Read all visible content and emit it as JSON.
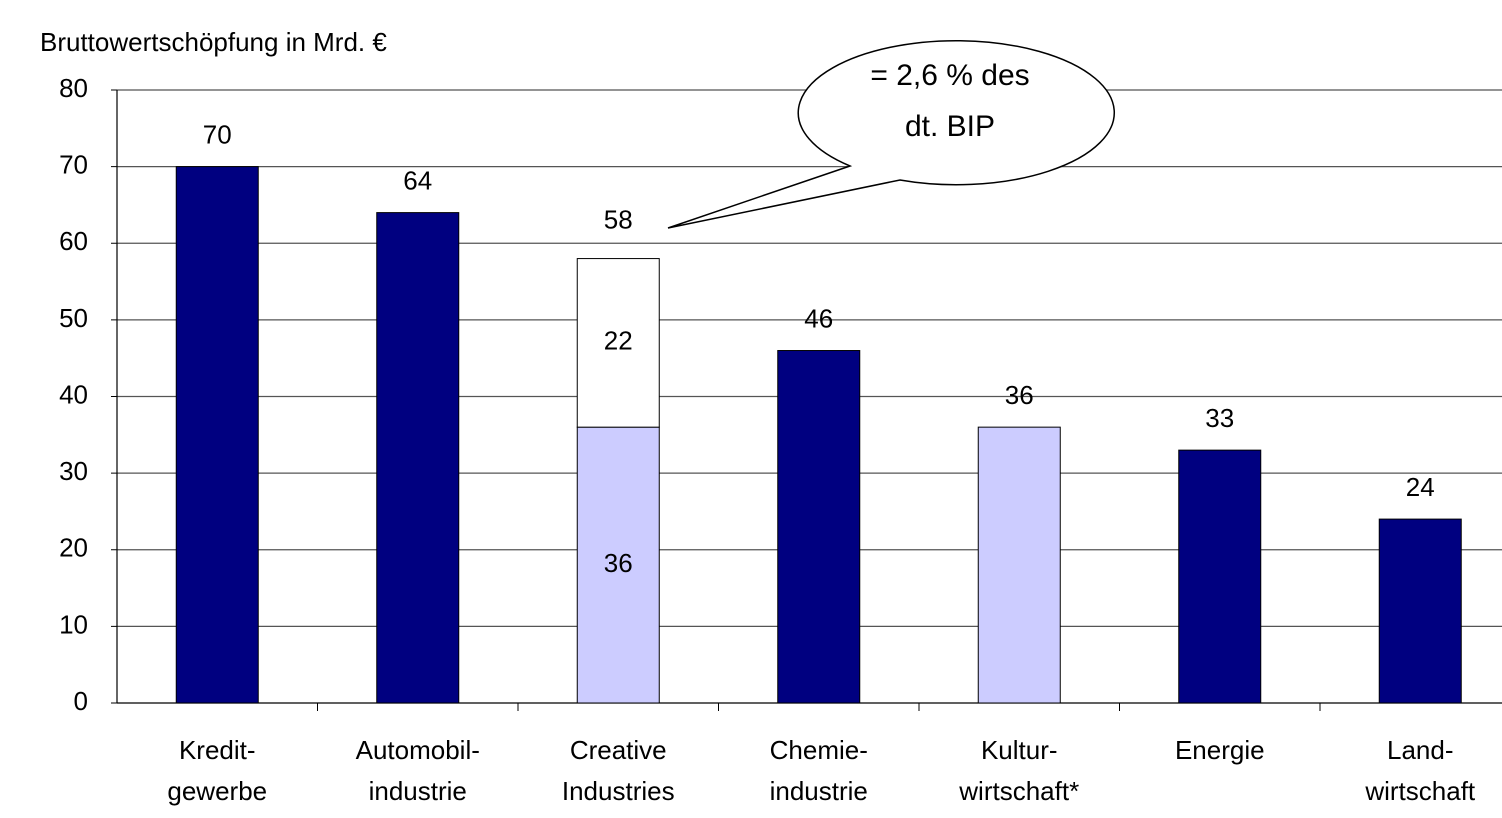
{
  "chart_data": {
    "type": "bar",
    "stacked": true,
    "y_label": "Bruttowertschöpfung in Mrd. €",
    "categories": [
      [
        "Kredit-",
        "gewerbe"
      ],
      [
        "Automobil-",
        "industrie"
      ],
      [
        "Creative",
        "Industries"
      ],
      [
        "Chemie-",
        "industrie"
      ],
      [
        "Kultur-",
        "wirtschaft*"
      ],
      [
        "Energie"
      ],
      [
        "Land-",
        "wirtschaft"
      ]
    ],
    "series": [
      {
        "colors": [
          "#000080",
          "#000080",
          "#ccccff",
          "#000080",
          "#ccccff",
          "#000080",
          "#000080"
        ],
        "values": [
          70,
          64,
          36,
          46,
          36,
          33,
          24
        ]
      },
      {
        "color": "#ffffff",
        "values": [
          null,
          null,
          22,
          null,
          null,
          null,
          null
        ]
      }
    ],
    "totals": [
      null,
      null,
      58,
      null,
      null,
      null,
      null
    ],
    "annotation": [
      "= 2,6 % des",
      "dt. BIP"
    ],
    "ylim": [
      0,
      80
    ],
    "yticks": [
      0,
      10,
      20,
      30,
      40,
      50,
      60,
      70,
      80
    ],
    "grid": true
  }
}
